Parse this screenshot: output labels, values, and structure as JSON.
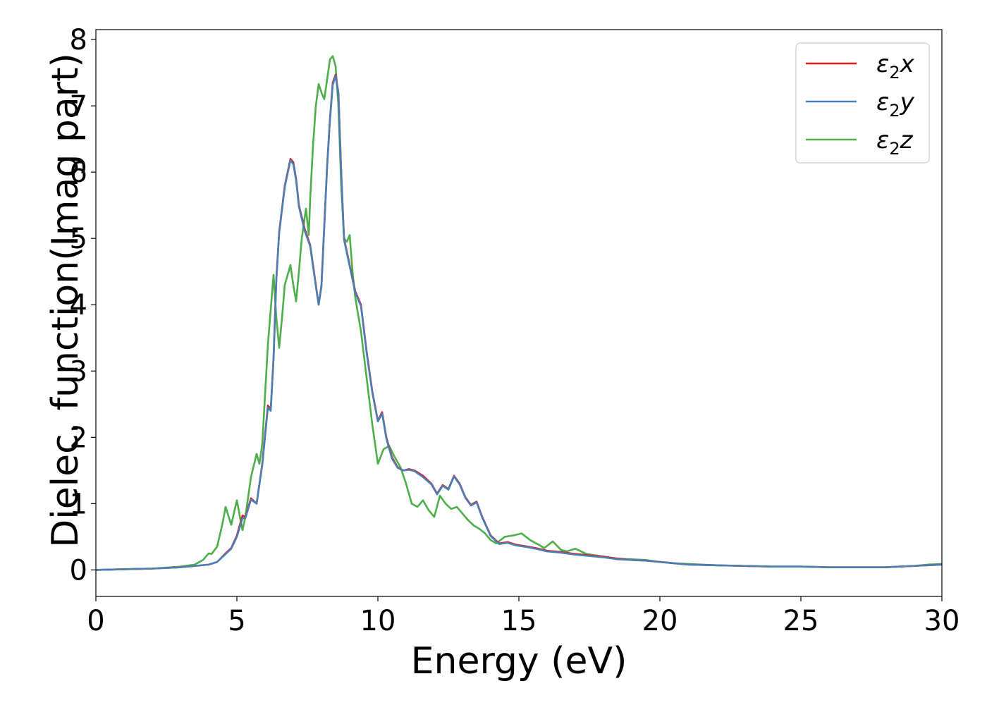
{
  "chart_data": {
    "type": "line",
    "xlabel": "Energy (eV)",
    "ylabel": "Dielec. function(Imag part)",
    "xlim": [
      0,
      30
    ],
    "ylim": [
      -0.4,
      8.15
    ],
    "xticks": [
      0,
      5,
      10,
      15,
      20,
      25,
      30
    ],
    "yticks": [
      0,
      1,
      2,
      3,
      4,
      5,
      6,
      7,
      8
    ],
    "grid": false,
    "legend_position": "top-right",
    "series": [
      {
        "name": "ε₂x",
        "legend": {
          "symbol": "ε",
          "sub": "2",
          "axis": "x"
        },
        "color": "#e41a1c",
        "x": [
          0,
          1,
          2,
          3,
          3.5,
          4,
          4.3,
          4.6,
          4.8,
          5.0,
          5.2,
          5.3,
          5.5,
          5.7,
          5.9,
          6.1,
          6.2,
          6.3,
          6.4,
          6.5,
          6.7,
          6.9,
          7.0,
          7.1,
          7.2,
          7.4,
          7.6,
          7.8,
          7.9,
          8.0,
          8.1,
          8.2,
          8.3,
          8.4,
          8.5,
          8.6,
          8.7,
          8.8,
          9.0,
          9.2,
          9.4,
          9.6,
          9.8,
          10.0,
          10.15,
          10.3,
          10.5,
          10.7,
          10.9,
          11.1,
          11.3,
          11.6,
          11.9,
          12.1,
          12.3,
          12.5,
          12.7,
          12.9,
          13.1,
          13.3,
          13.5,
          13.7,
          14.0,
          14.3,
          14.6,
          14.9,
          15.2,
          15.6,
          16.0,
          16.5,
          17.0,
          17.5,
          18.0,
          18.5,
          19.0,
          19.5,
          20.0,
          20.5,
          21.0,
          22.0,
          23.0,
          24.0,
          25.0,
          26.0,
          27.0,
          28.0,
          28.5,
          29.0,
          29.5,
          30.0
        ],
        "y": [
          0.0,
          0.01,
          0.02,
          0.04,
          0.06,
          0.08,
          0.12,
          0.25,
          0.33,
          0.52,
          0.82,
          0.8,
          1.08,
          1.0,
          1.6,
          2.48,
          2.42,
          3.2,
          4.4,
          5.1,
          5.8,
          6.2,
          6.15,
          5.9,
          5.5,
          5.15,
          4.9,
          4.3,
          4.0,
          4.3,
          5.2,
          6.1,
          6.8,
          7.35,
          7.47,
          7.2,
          6.0,
          5.0,
          4.6,
          4.2,
          4.0,
          3.3,
          2.7,
          2.25,
          2.38,
          2.0,
          1.7,
          1.55,
          1.5,
          1.52,
          1.5,
          1.42,
          1.3,
          1.15,
          1.28,
          1.22,
          1.42,
          1.3,
          1.1,
          0.98,
          1.03,
          0.8,
          0.52,
          0.4,
          0.42,
          0.38,
          0.36,
          0.33,
          0.29,
          0.27,
          0.24,
          0.22,
          0.2,
          0.17,
          0.15,
          0.14,
          0.12,
          0.1,
          0.08,
          0.07,
          0.06,
          0.05,
          0.05,
          0.04,
          0.04,
          0.04,
          0.05,
          0.06,
          0.07,
          0.08
        ]
      },
      {
        "name": "ε₂y",
        "legend": {
          "symbol": "ε",
          "sub": "2",
          "axis": "y"
        },
        "color": "#4a7fb5",
        "x": [
          0,
          1,
          2,
          3,
          3.5,
          4,
          4.3,
          4.6,
          4.8,
          5.0,
          5.2,
          5.3,
          5.5,
          5.7,
          5.9,
          6.1,
          6.2,
          6.3,
          6.4,
          6.5,
          6.7,
          6.9,
          7.0,
          7.1,
          7.2,
          7.4,
          7.6,
          7.8,
          7.9,
          8.0,
          8.1,
          8.2,
          8.3,
          8.4,
          8.5,
          8.6,
          8.7,
          8.8,
          9.0,
          9.2,
          9.4,
          9.6,
          9.8,
          10.0,
          10.15,
          10.3,
          10.5,
          10.7,
          10.9,
          11.1,
          11.3,
          11.6,
          11.9,
          12.1,
          12.3,
          12.5,
          12.7,
          12.9,
          13.1,
          13.3,
          13.5,
          13.7,
          14.0,
          14.3,
          14.6,
          14.9,
          15.2,
          15.6,
          16.0,
          16.5,
          17.0,
          17.5,
          18.0,
          18.5,
          19.0,
          19.5,
          20.0,
          20.5,
          21.0,
          22.0,
          23.0,
          24.0,
          25.0,
          26.0,
          27.0,
          28.0,
          28.5,
          29.0,
          29.5,
          30.0
        ],
        "y": [
          0.0,
          0.01,
          0.02,
          0.04,
          0.06,
          0.08,
          0.12,
          0.24,
          0.32,
          0.5,
          0.78,
          0.78,
          1.06,
          1.0,
          1.58,
          2.45,
          2.4,
          3.18,
          4.38,
          5.08,
          5.78,
          6.18,
          6.12,
          5.88,
          5.48,
          5.12,
          4.88,
          4.28,
          4.0,
          4.28,
          5.18,
          6.08,
          6.78,
          7.32,
          7.45,
          7.18,
          5.98,
          4.98,
          4.58,
          4.18,
          3.98,
          3.28,
          2.68,
          2.24,
          2.36,
          1.98,
          1.68,
          1.54,
          1.5,
          1.51,
          1.49,
          1.4,
          1.29,
          1.14,
          1.27,
          1.21,
          1.41,
          1.29,
          1.09,
          0.97,
          1.02,
          0.79,
          0.51,
          0.39,
          0.41,
          0.37,
          0.35,
          0.32,
          0.28,
          0.26,
          0.23,
          0.21,
          0.19,
          0.16,
          0.15,
          0.14,
          0.12,
          0.1,
          0.08,
          0.07,
          0.06,
          0.05,
          0.05,
          0.04,
          0.04,
          0.04,
          0.05,
          0.06,
          0.07,
          0.08
        ]
      },
      {
        "name": "ε₂z",
        "legend": {
          "symbol": "ε",
          "sub": "2",
          "axis": "z"
        },
        "color": "#4daf4a",
        "x": [
          0,
          1,
          2,
          3,
          3.5,
          3.8,
          4.0,
          4.1,
          4.3,
          4.5,
          4.6,
          4.8,
          5.0,
          5.1,
          5.2,
          5.3,
          5.5,
          5.7,
          5.8,
          5.9,
          6.1,
          6.3,
          6.4,
          6.5,
          6.6,
          6.7,
          6.9,
          7.0,
          7.1,
          7.2,
          7.3,
          7.45,
          7.55,
          7.6,
          7.7,
          7.8,
          7.9,
          8.0,
          8.1,
          8.2,
          8.3,
          8.4,
          8.5,
          8.6,
          8.7,
          8.8,
          8.9,
          9.0,
          9.1,
          9.2,
          9.4,
          9.6,
          9.8,
          10.0,
          10.2,
          10.4,
          10.6,
          10.8,
          11.0,
          11.2,
          11.4,
          11.6,
          11.8,
          12.0,
          12.2,
          12.4,
          12.6,
          12.8,
          13.0,
          13.2,
          13.4,
          13.6,
          13.8,
          14.0,
          14.2,
          14.5,
          14.8,
          15.1,
          15.4,
          15.7,
          15.9,
          16.2,
          16.5,
          16.7,
          17.0,
          17.4,
          18.0,
          18.5,
          19.0,
          19.5,
          20.0,
          20.5,
          21.0,
          22.0,
          23.0,
          24.0,
          25.0,
          26.0,
          27.0,
          28.0,
          28.5,
          29.0,
          29.5,
          30.0
        ],
        "y": [
          0.0,
          0.01,
          0.02,
          0.05,
          0.08,
          0.15,
          0.25,
          0.24,
          0.35,
          0.72,
          0.95,
          0.68,
          1.05,
          0.82,
          0.6,
          0.8,
          1.4,
          1.75,
          1.6,
          1.9,
          3.4,
          4.45,
          3.8,
          3.35,
          3.8,
          4.3,
          4.6,
          4.3,
          4.05,
          4.5,
          5.0,
          5.45,
          5.05,
          5.6,
          6.4,
          7.0,
          7.33,
          7.2,
          7.1,
          7.4,
          7.7,
          7.75,
          7.6,
          7.0,
          5.8,
          5.0,
          4.95,
          5.05,
          4.5,
          4.1,
          3.6,
          2.9,
          2.2,
          1.6,
          1.82,
          1.87,
          1.7,
          1.55,
          1.3,
          1.0,
          0.95,
          1.05,
          0.9,
          0.8,
          1.12,
          1.0,
          0.92,
          0.95,
          0.85,
          0.75,
          0.67,
          0.62,
          0.55,
          0.45,
          0.4,
          0.5,
          0.52,
          0.55,
          0.45,
          0.38,
          0.33,
          0.43,
          0.3,
          0.28,
          0.32,
          0.24,
          0.2,
          0.17,
          0.16,
          0.15,
          0.12,
          0.1,
          0.09,
          0.07,
          0.06,
          0.05,
          0.05,
          0.04,
          0.04,
          0.04,
          0.05,
          0.06,
          0.08,
          0.09
        ]
      }
    ]
  }
}
